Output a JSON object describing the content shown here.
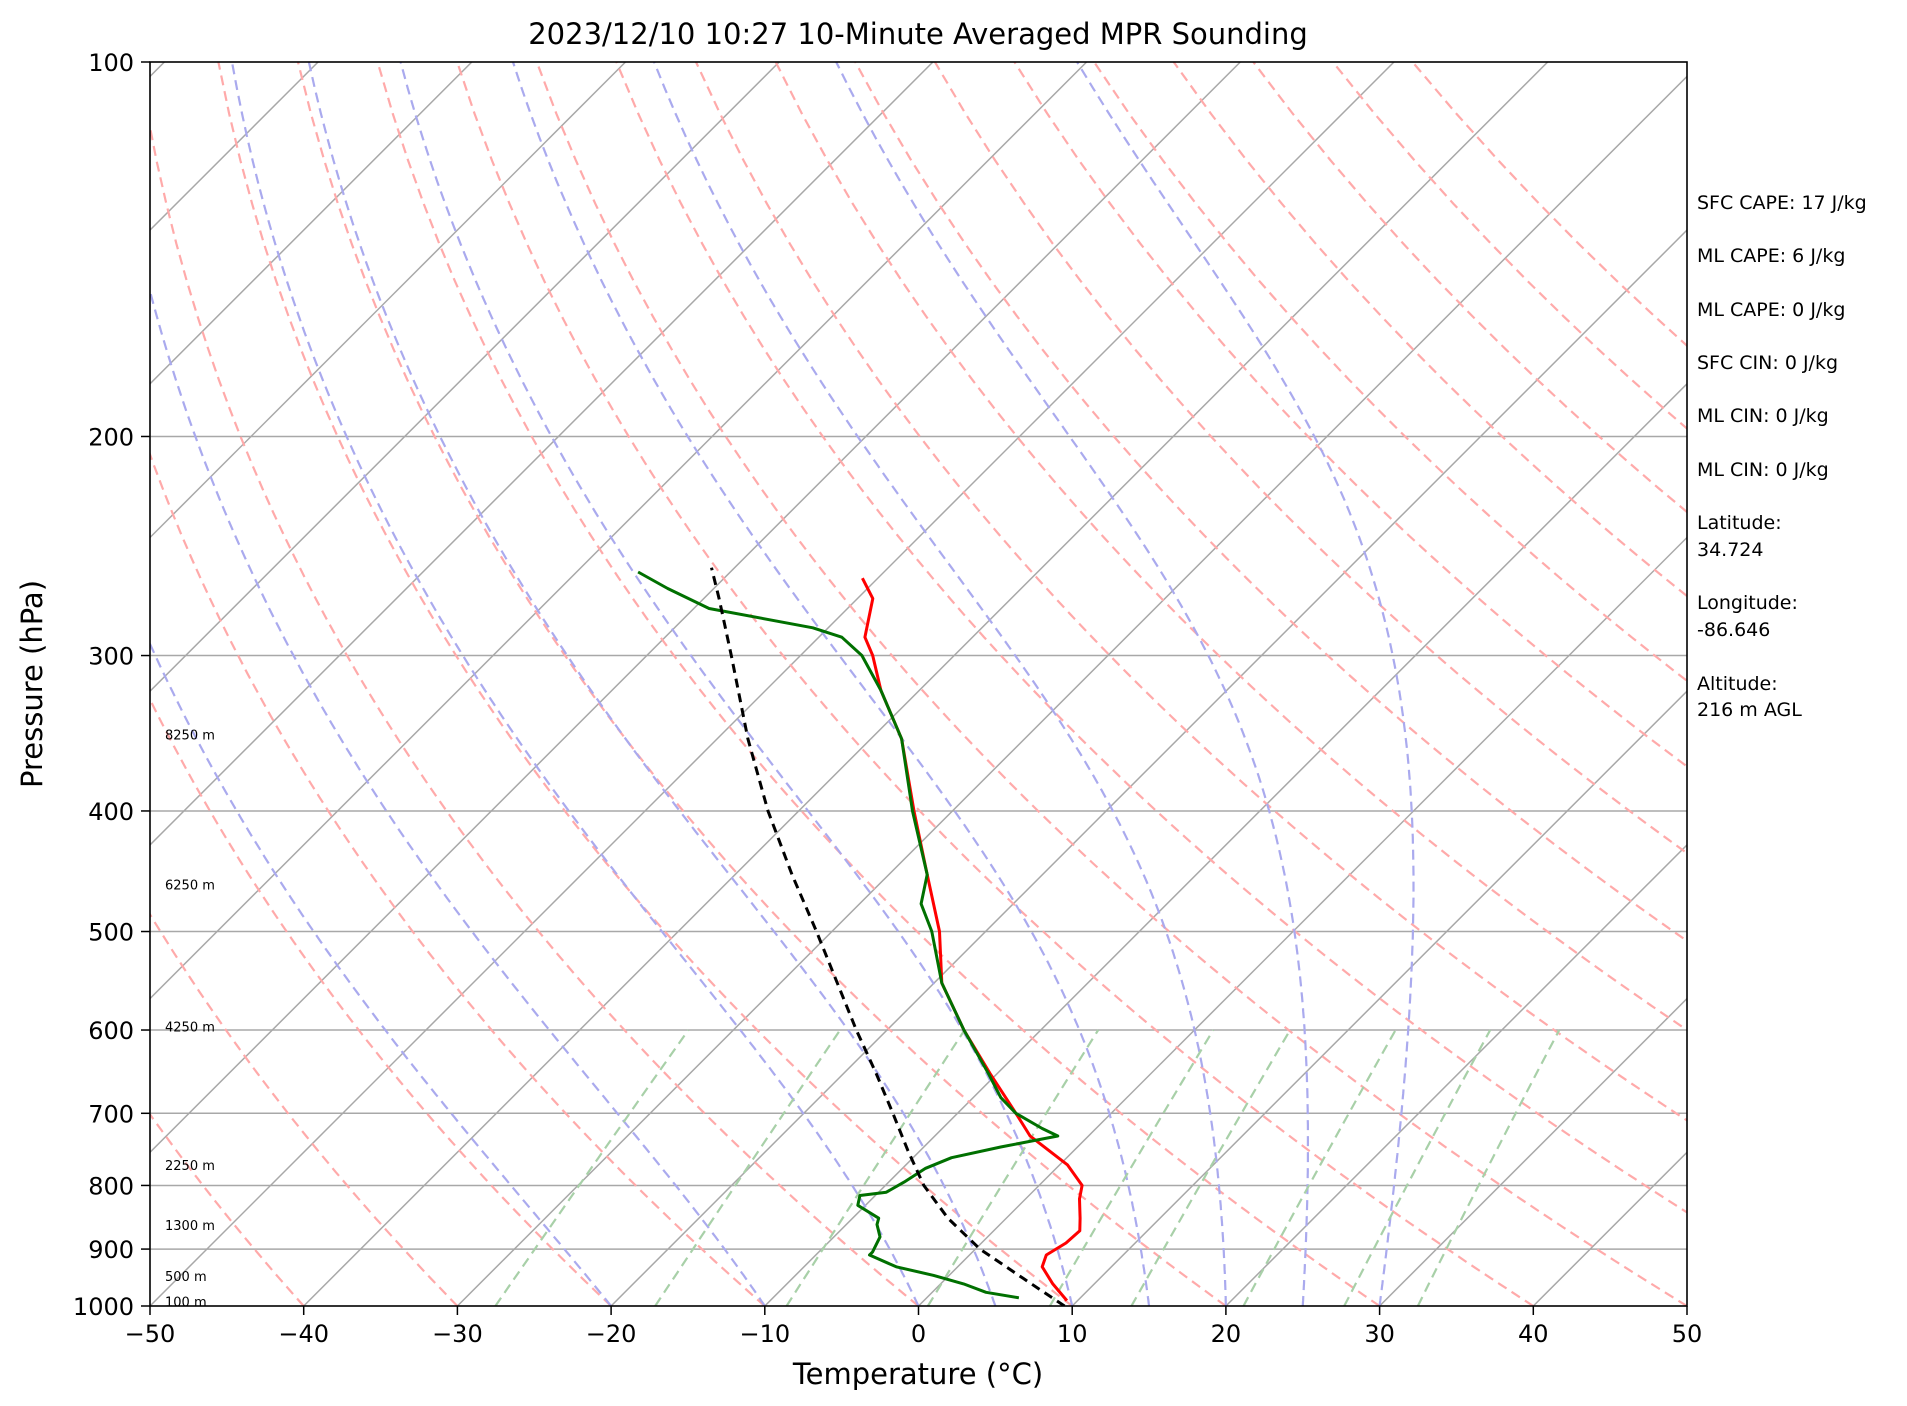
{
  "chart_data": {
    "type": "line",
    "title": "2023/12/10 10:27 10-Minute Averaged MPR Sounding",
    "xlabel": "Temperature (°C)",
    "ylabel": "Pressure (hPa)",
    "xlim": [
      -50,
      50
    ],
    "ylim": [
      1000,
      100
    ],
    "y_scale": "log",
    "skew": "skew-T (isotherms slanted)",
    "grid": true,
    "x_ticks": [
      "−50",
      "−40",
      "−30",
      "−20",
      "−10",
      "0",
      "10",
      "20",
      "30",
      "40",
      "50"
    ],
    "x_tick_values": [
      -50,
      -40,
      -30,
      -20,
      -10,
      0,
      10,
      20,
      30,
      40,
      50
    ],
    "y_ticks": [
      "100",
      "200",
      "300",
      "400",
      "500",
      "600",
      "700",
      "800",
      "900",
      "1000"
    ],
    "y_tick_values": [
      100,
      200,
      300,
      400,
      500,
      600,
      700,
      800,
      900,
      1000
    ],
    "height_labels": [
      {
        "text": "100 m",
        "pressure": 994
      },
      {
        "text": "500 m",
        "pressure": 948
      },
      {
        "text": "1300 m",
        "pressure": 862
      },
      {
        "text": "2250 m",
        "pressure": 772
      },
      {
        "text": "4250 m",
        "pressure": 597
      },
      {
        "text": "6250 m",
        "pressure": 459
      },
      {
        "text": "8250 m",
        "pressure": 348
      }
    ],
    "series": [
      {
        "color": "#ff0000",
        "points": [
          {
            "p": 990,
            "t": 9.3
          },
          {
            "p": 960,
            "t": 7.3
          },
          {
            "p": 930,
            "t": 5.5
          },
          {
            "p": 910,
            "t": 5.0
          },
          {
            "p": 890,
            "t": 5.5
          },
          {
            "p": 870,
            "t": 5.6
          },
          {
            "p": 850,
            "t": 4.8
          },
          {
            "p": 820,
            "t": 3.5
          },
          {
            "p": 800,
            "t": 2.8
          },
          {
            "p": 770,
            "t": 0.5
          },
          {
            "p": 730,
            "t": -3.8
          },
          {
            "p": 700,
            "t": -6.2
          },
          {
            "p": 650,
            "t": -10.5
          },
          {
            "p": 600,
            "t": -15.0
          },
          {
            "p": 550,
            "t": -19.5
          },
          {
            "p": 500,
            "t": -23.0
          },
          {
            "p": 450,
            "t": -27.5
          },
          {
            "p": 400,
            "t": -32.5
          },
          {
            "p": 350,
            "t": -38.0
          },
          {
            "p": 320,
            "t": -42.5
          },
          {
            "p": 300,
            "t": -45.3
          },
          {
            "p": 290,
            "t": -47.0
          },
          {
            "p": 270,
            "t": -49.0
          },
          {
            "p": 260,
            "t": -51.0
          }
        ]
      },
      {
        "color": "#007000",
        "points": [
          {
            "p": 985,
            "t": 6.0
          },
          {
            "p": 975,
            "t": 3.5
          },
          {
            "p": 960,
            "t": 1.5
          },
          {
            "p": 945,
            "t": -1.0
          },
          {
            "p": 930,
            "t": -4.0
          },
          {
            "p": 910,
            "t": -6.5
          },
          {
            "p": 905,
            "t": -6.5
          },
          {
            "p": 880,
            "t": -7.0
          },
          {
            "p": 860,
            "t": -8.0
          },
          {
            "p": 850,
            "t": -8.3
          },
          {
            "p": 830,
            "t": -10.5
          },
          {
            "p": 815,
            "t": -11.0
          },
          {
            "p": 810,
            "t": -9.5
          },
          {
            "p": 795,
            "t": -9.0
          },
          {
            "p": 775,
            "t": -8.5
          },
          {
            "p": 760,
            "t": -7.5
          },
          {
            "p": 745,
            "t": -5.0
          },
          {
            "p": 730,
            "t": -2.0
          },
          {
            "p": 720,
            "t": -3.5
          },
          {
            "p": 700,
            "t": -6.2
          },
          {
            "p": 680,
            "t": -8.2
          },
          {
            "p": 650,
            "t": -10.6
          },
          {
            "p": 600,
            "t": -15.0
          },
          {
            "p": 550,
            "t": -19.5
          },
          {
            "p": 500,
            "t": -23.5
          },
          {
            "p": 475,
            "t": -26.0
          },
          {
            "p": 450,
            "t": -27.5
          },
          {
            "p": 400,
            "t": -32.6
          },
          {
            "p": 350,
            "t": -38.0
          },
          {
            "p": 320,
            "t": -42.5
          },
          {
            "p": 300,
            "t": -46.0
          },
          {
            "p": 290,
            "t": -48.5
          },
          {
            "p": 285,
            "t": -51.0
          },
          {
            "p": 275,
            "t": -59.0
          },
          {
            "p": 265,
            "t": -63.0
          },
          {
            "p": 257,
            "t": -66.0
          }
        ]
      },
      {
        "color": "#000000",
        "dashed": true,
        "points": [
          {
            "p": 1000,
            "t": 9.5
          },
          {
            "p": 950,
            "t": 5.0
          },
          {
            "p": 900,
            "t": 0.3
          },
          {
            "p": 850,
            "t": -3.8
          },
          {
            "p": 800,
            "t": -7.5
          },
          {
            "p": 750,
            "t": -10.8
          },
          {
            "p": 700,
            "t": -14.2
          },
          {
            "p": 650,
            "t": -17.9
          },
          {
            "p": 600,
            "t": -22.0
          },
          {
            "p": 550,
            "t": -26.3
          },
          {
            "p": 500,
            "t": -31.0
          },
          {
            "p": 450,
            "t": -36.3
          },
          {
            "p": 400,
            "t": -42.0
          },
          {
            "p": 350,
            "t": -48.0
          },
          {
            "p": 300,
            "t": -54.5
          },
          {
            "p": 270,
            "t": -59.0
          },
          {
            "p": 255,
            "t": -61.5
          }
        ]
      }
    ],
    "isotherms_C": [
      -130,
      -120,
      -110,
      -100,
      -90,
      -80,
      -70,
      -60,
      -50,
      -40,
      -30,
      -20,
      -10,
      0,
      10,
      20,
      30,
      40,
      50
    ],
    "dry_adiabats_C": [
      -60,
      -50,
      -40,
      -30,
      -20,
      -10,
      0,
      10,
      20,
      30,
      40,
      50,
      60,
      70,
      80,
      90,
      100,
      110,
      120,
      130,
      140,
      150,
      160
    ],
    "moist_adiabats_C": [
      -20,
      -10,
      0,
      5,
      10,
      15,
      20,
      25,
      30
    ],
    "mixing_ratios_gkg": [
      0.4,
      1,
      2,
      4,
      7,
      10,
      16,
      24,
      32
    ],
    "annotations": [
      "SFC CAPE: 17 J/kg",
      "ML CAPE: 6 J/kg",
      "ML CAPE: 0 J/kg",
      "SFC CIN: 0 J/kg",
      "ML CIN: 0 J/kg",
      "ML CIN: 0 J/kg",
      "Latitude:",
      "34.724",
      "Longitude:",
      "-86.646",
      "Altitude:",
      "216 m AGL"
    ],
    "colors": {
      "temperature": "#ff0000",
      "dewpoint": "#007000",
      "parcel": "#000000",
      "dry_adiabat": "#ffaaaa",
      "moist_adiabat": "#aaaaee",
      "mixing_ratio": "#a8d0a8",
      "isotherm": "#a8a8a8",
      "isobar": "#a8a8a8"
    }
  }
}
